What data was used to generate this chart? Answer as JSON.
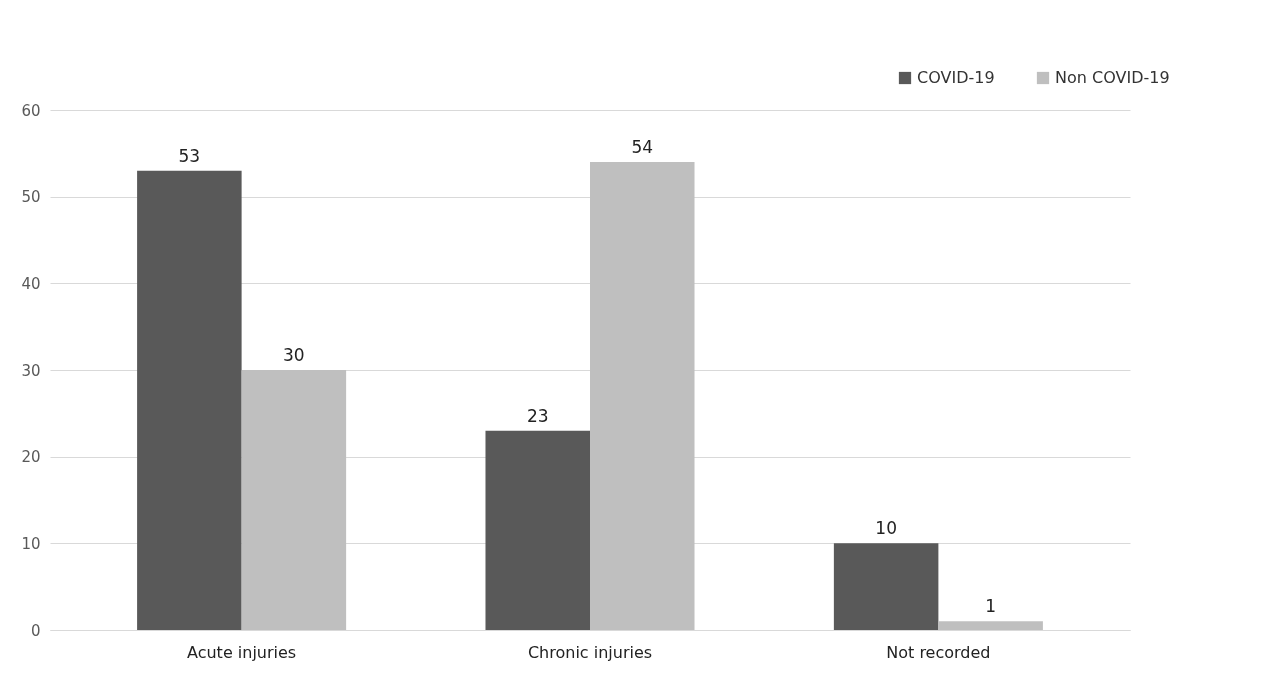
{
  "chart_data": {
    "type": "bar",
    "categories": [
      "Acute injuries",
      "Chronic injuries",
      "Not recorded"
    ],
    "series": [
      {
        "name": "COVID-19",
        "color": "#595959",
        "values": [
          53,
          23,
          10
        ]
      },
      {
        "name": "Non COVID-19",
        "color": "#bfbfbf",
        "values": [
          30,
          54,
          1
        ]
      }
    ],
    "ylim": [
      0,
      60
    ],
    "yticks": [
      0,
      10,
      20,
      30,
      40,
      50,
      60
    ],
    "grid": "y",
    "legend": "top right",
    "data_labels": true
  }
}
